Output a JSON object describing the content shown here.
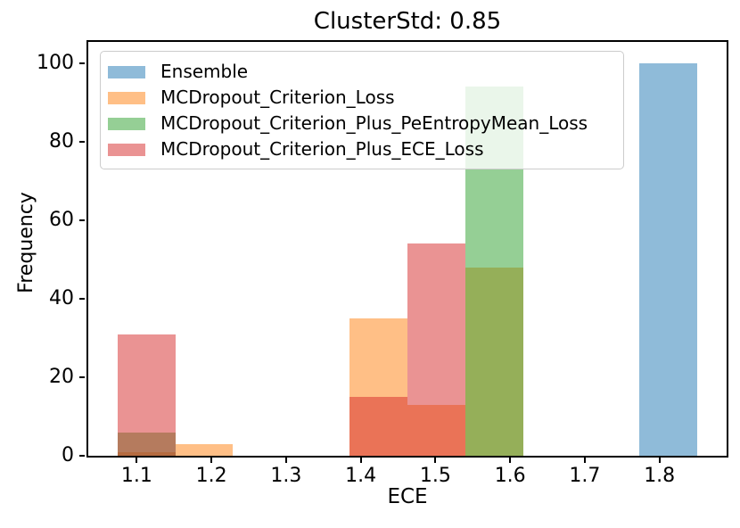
{
  "title": "ClusterStd: 0.85",
  "chart_data": {
    "type": "histogram",
    "title": "ClusterStd: 0.85",
    "xlabel": "ECE",
    "ylabel": "Frequency",
    "xlim": [
      1.0351,
      1.8899
    ],
    "ylim": [
      0,
      105.45
    ],
    "x_ticks": [
      1.1,
      1.2,
      1.3,
      1.4,
      1.5,
      1.6,
      1.7,
      1.8
    ],
    "x_tick_labels": [
      "1.1",
      "1.2",
      "1.3",
      "1.4",
      "1.5",
      "1.6",
      "1.7",
      "1.8"
    ],
    "y_ticks": [
      0,
      20,
      40,
      60,
      80,
      100
    ],
    "y_tick_labels": [
      "0",
      "20",
      "40",
      "60",
      "80",
      "100"
    ],
    "grid": false,
    "legend_position": "upper left",
    "bar_alpha": 0.5,
    "bin_edges": [
      1.074,
      1.152,
      1.229,
      1.307,
      1.385,
      1.462,
      1.54,
      1.618,
      1.696,
      1.773,
      1.851
    ],
    "series": [
      {
        "name": "Ensemble",
        "color": "#1f77b4",
        "counts": [
          0,
          0,
          0,
          0,
          0,
          0,
          0,
          0,
          0,
          100
        ]
      },
      {
        "name": "MCDropout_Criterion_Loss",
        "color": "#ff7f0e",
        "counts": [
          1,
          3,
          0,
          0,
          35,
          13,
          48,
          0,
          0,
          0
        ]
      },
      {
        "name": "MCDropout_Criterion_Plus_PeEntropyMean_Loss",
        "color": "#2ca02c",
        "counts": [
          6,
          0,
          0,
          0,
          0,
          0,
          94,
          0,
          0,
          0
        ]
      },
      {
        "name": "MCDropout_Criterion_Plus_ECE_Loss",
        "color": "#d62728",
        "counts": [
          31,
          0,
          0,
          0,
          15,
          54,
          0,
          0,
          0,
          0
        ]
      }
    ]
  }
}
